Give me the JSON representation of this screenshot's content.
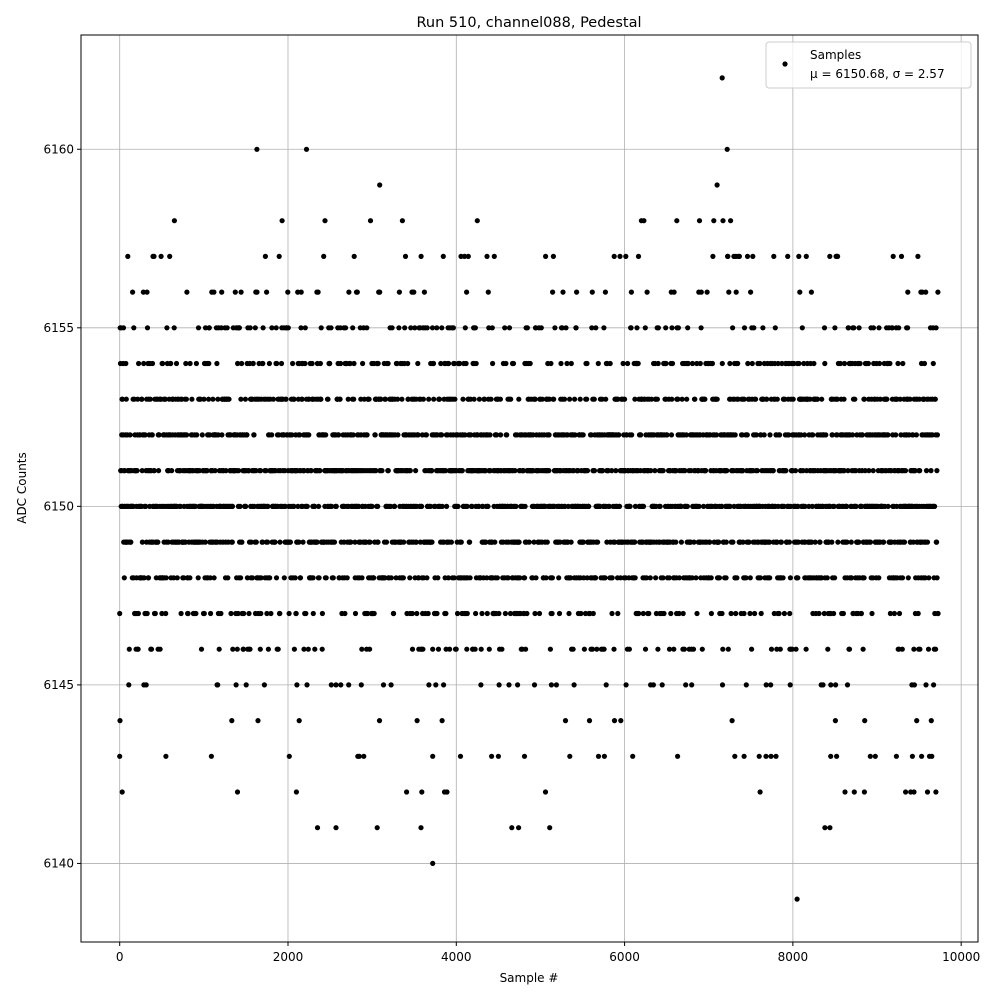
{
  "chart_data": {
    "type": "scatter",
    "title": "Run 510, channel088, Pedestal",
    "xlabel": "Sample #",
    "ylabel": "ADC Counts",
    "xlim": [
      -460,
      10200
    ],
    "ylim": [
      6137.8,
      6163.2
    ],
    "xticks": [
      0,
      2000,
      4000,
      6000,
      8000,
      10000
    ],
    "yticks": [
      6140,
      6145,
      6150,
      6155,
      6160
    ],
    "grid": true,
    "legend_position": "top-right",
    "marker_color": "#000000",
    "series": [
      {
        "name": "Samples",
        "stats_label": "μ = 6150.68, σ = 2.57",
        "n_samples": 9728,
        "outliers": [
          [
            0,
            6143
          ],
          [
            30,
            6142
          ],
          [
            1400,
            6142
          ],
          [
            1630,
            6160
          ],
          [
            2220,
            6160
          ],
          [
            3090,
            6159
          ],
          [
            3720,
            6140
          ],
          [
            7160,
            6162
          ],
          [
            7220,
            6160
          ],
          [
            7100,
            6159
          ],
          [
            8050,
            6139
          ],
          [
            2350,
            6141
          ],
          [
            2570,
            6141
          ],
          [
            3060,
            6141
          ],
          [
            3580,
            6141
          ],
          [
            4660,
            6141
          ],
          [
            4740,
            6141
          ],
          [
            5110,
            6141
          ],
          [
            8380,
            6141
          ],
          [
            8440,
            6141
          ],
          [
            2100,
            6142
          ],
          [
            3410,
            6142
          ],
          [
            3590,
            6142
          ],
          [
            3860,
            6142
          ],
          [
            3890,
            6142
          ],
          [
            5060,
            6142
          ],
          [
            7610,
            6142
          ],
          [
            8620,
            6142
          ],
          [
            8730,
            6142
          ],
          [
            8850,
            6142
          ],
          [
            9340,
            6142
          ],
          [
            9400,
            6142
          ],
          [
            9440,
            6142
          ],
          [
            9600,
            6142
          ],
          [
            9700,
            6142
          ],
          [
            1090,
            6143
          ],
          [
            2830,
            6143
          ],
          [
            3720,
            6143
          ],
          [
            4050,
            6143
          ],
          [
            4420,
            6143
          ],
          [
            4500,
            6143
          ],
          [
            4810,
            6143
          ],
          [
            5690,
            6143
          ],
          [
            5760,
            6143
          ],
          [
            6630,
            6143
          ],
          [
            7310,
            6143
          ],
          [
            7420,
            6143
          ],
          [
            7600,
            6143
          ],
          [
            7680,
            6143
          ],
          [
            7740,
            6143
          ],
          [
            7800,
            6143
          ],
          [
            8450,
            6143
          ],
          [
            8520,
            6143
          ],
          [
            8920,
            6143
          ],
          [
            8980,
            6143
          ],
          [
            9230,
            6143
          ],
          [
            9420,
            6143
          ],
          [
            9530,
            6143
          ],
          [
            650,
            6158
          ],
          [
            1930,
            6158
          ],
          [
            2440,
            6158
          ],
          [
            2980,
            6158
          ],
          [
            3360,
            6158
          ],
          [
            4250,
            6158
          ],
          [
            6200,
            6158
          ],
          [
            6230,
            6158
          ],
          [
            6620,
            6158
          ],
          [
            6890,
            6158
          ],
          [
            7060,
            6158
          ],
          [
            7170,
            6158
          ],
          [
            7260,
            6158
          ]
        ]
      }
    ]
  }
}
